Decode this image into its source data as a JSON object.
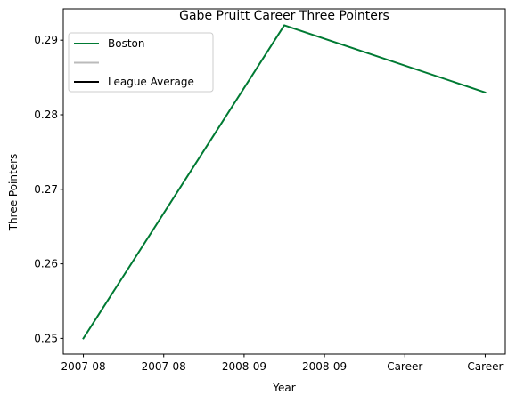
{
  "chart_data": {
    "type": "line",
    "title": "Gabe Pruitt Career Three Pointers",
    "xlabel": "Year",
    "ylabel": "Three Pointers",
    "x_tick_labels": [
      "2007-08",
      "2007-08",
      "2008-09",
      "2008-09",
      "Career",
      "Career"
    ],
    "y_ticks": [
      0.25,
      0.26,
      0.27,
      0.28,
      0.29
    ],
    "y_tick_labels": [
      "0.25",
      "0.26",
      "0.27",
      "0.28",
      "0.29"
    ],
    "xlim": [
      -0.25,
      5.25
    ],
    "ylim": [
      0.2479,
      0.2942
    ],
    "series": [
      {
        "name": "Boston",
        "color": "#007a33",
        "x": [
          0,
          2.5,
          5
        ],
        "values": [
          0.25,
          0.292,
          0.283
        ]
      }
    ],
    "legend": {
      "location": "top-left",
      "entries": [
        {
          "label": "Boston",
          "color": "#007a33"
        },
        {
          "label": "",
          "color": "#bbbbbb"
        },
        {
          "label": "League Average",
          "color": "#000000"
        }
      ]
    }
  }
}
